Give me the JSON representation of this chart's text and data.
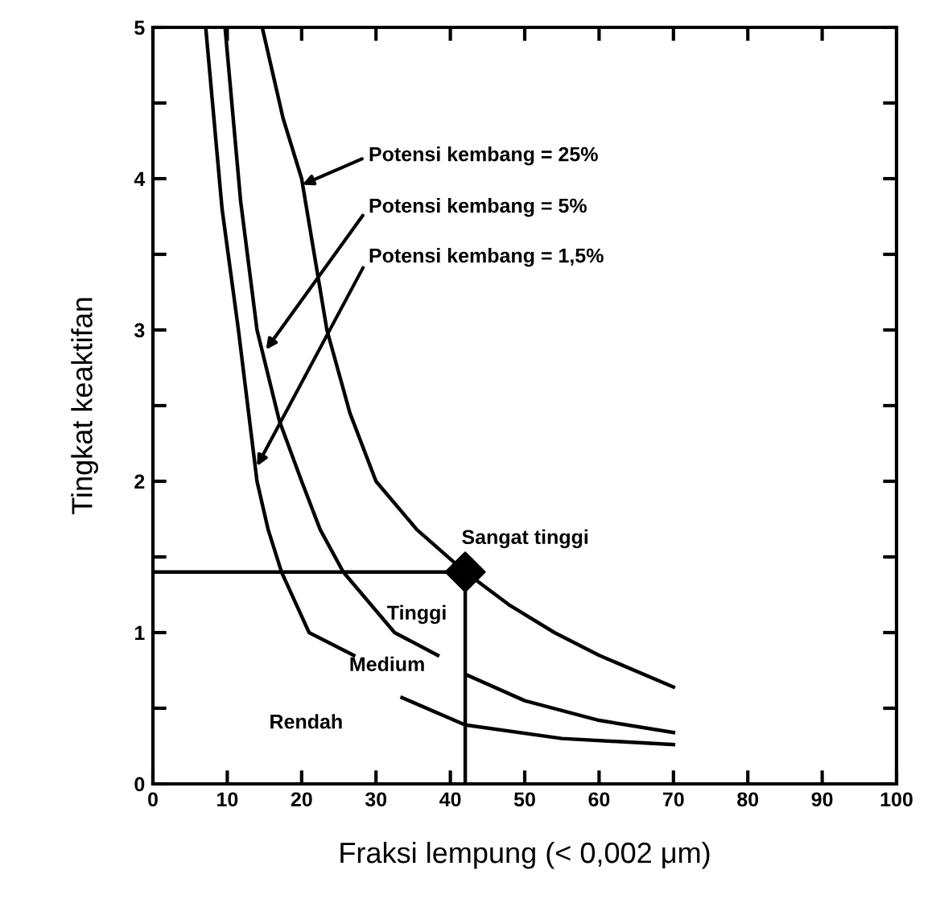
{
  "chart_data": {
    "type": "line",
    "xlabel": "Fraksi lempung (< 0,002 μm)",
    "ylabel": "Tingkat keaktifan",
    "xlim": [
      0,
      100
    ],
    "xticks": [
      0,
      10,
      20,
      30,
      40,
      50,
      60,
      70,
      80,
      90,
      100
    ],
    "ylim": [
      0,
      5
    ],
    "yticks": [
      0,
      {
        "value": 0.5,
        "label": null
      },
      1,
      {
        "value": 1.5,
        "label": null
      },
      2,
      {
        "value": 2.5,
        "label": null
      },
      3,
      {
        "value": 3.5,
        "label": null
      },
      4,
      {
        "value": 4.5,
        "label": null
      },
      5
    ],
    "grid": false,
    "legend": false,
    "series": [
      {
        "color": "#000000",
        "x": [
          14.7,
          17.5,
          20,
          23.4,
          26.5,
          30,
          35.5,
          42,
          48,
          54,
          60,
          70
        ],
        "values": [
          5,
          4.4,
          4,
          3,
          2.45,
          2,
          1.68,
          1.4,
          1.18,
          1,
          0.85,
          0.64
        ]
      },
      {
        "color": "#000000",
        "x": [
          9.7,
          11.8,
          14,
          17,
          20,
          22.5,
          25.6,
          32.5,
          38.3,
          40,
          42.2,
          50,
          60,
          70
        ],
        "values": [
          5,
          3.85,
          3,
          2.4,
          2,
          1.68,
          1.4,
          1,
          0.85,
          null,
          0.72,
          0.55,
          0.42,
          0.34
        ]
      },
      {
        "color": "#000000",
        "x": [
          7.1,
          9.3,
          11.5,
          14,
          15.5,
          17.3,
          21,
          27,
          30,
          33.5,
          42,
          55,
          70
        ],
        "values": [
          5,
          3.8,
          3,
          2,
          1.68,
          1.4,
          1,
          0.85,
          null,
          0.57,
          0.39,
          0.3,
          0.26
        ]
      },
      {
        "color": "#000000",
        "x": [
          0,
          42,
          42
        ],
        "values": [
          1.4,
          1.4,
          0
        ]
      },
      {
        "type": "scatter",
        "color": "#000000",
        "x": [
          42
        ],
        "values": [
          1.4
        ],
        "marker": "diamond"
      }
    ],
    "annotations": [
      {
        "text": "Potensi kembang = 25%",
        "x": 20.1,
        "y": 3.96
      },
      {
        "text": "Potensi kembang = 5%",
        "x": 15.2,
        "y": 2.87
      },
      {
        "text": "Potensi kembang = 1,5%",
        "x": 14,
        "y": 2.1
      },
      "Sangat tinggi",
      "Tinggi",
      "Medium",
      "Rendah"
    ]
  }
}
